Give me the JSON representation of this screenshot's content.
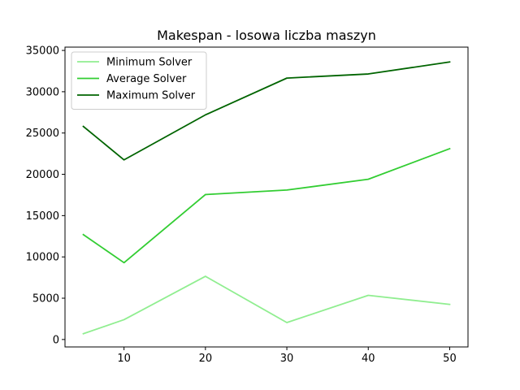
{
  "chart_data": {
    "type": "line",
    "title": "Makespan - losowa liczba maszyn",
    "xlabel": "",
    "ylabel": "",
    "x": [
      5,
      10,
      20,
      30,
      40,
      50
    ],
    "x_ticks": [
      10,
      20,
      30,
      40,
      50
    ],
    "y_ticks": [
      0,
      5000,
      10000,
      15000,
      20000,
      25000,
      30000,
      35000
    ],
    "xlim": [
      2.75,
      52.25
    ],
    "ylim": [
      -900,
      35400
    ],
    "grid": false,
    "legend_position": "top-left",
    "series": [
      {
        "name": "Minimum Solver",
        "color": "#90ee90",
        "values": [
          700,
          2400,
          7650,
          2050,
          5350,
          4250
        ]
      },
      {
        "name": "Average Solver",
        "color": "#32cd32",
        "values": [
          12700,
          9300,
          17550,
          18100,
          19400,
          23100
        ]
      },
      {
        "name": "Maximum Solver",
        "color": "#006400",
        "values": [
          25800,
          21750,
          27200,
          31650,
          32150,
          33600
        ]
      }
    ]
  }
}
